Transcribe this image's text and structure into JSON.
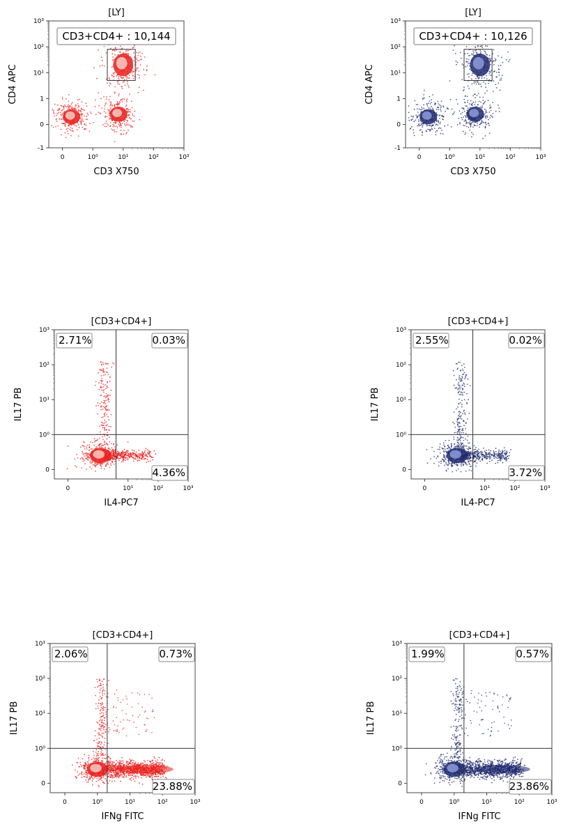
{
  "colors": {
    "red_series": "#e8201e",
    "blue_series": "#1f2a6e",
    "red_core": "#fbe0d8",
    "blue_core": "#9aa8e6"
  },
  "chart_data": [
    {
      "type": "scatter",
      "title": "[LY]",
      "xlabel": "CD3 X750",
      "ylabel": "CD4 APC",
      "x_scale": "biexponential",
      "y_scale": "biexponential",
      "xlim": [
        -0.5,
        1000
      ],
      "ylim": [
        -1,
        1000
      ],
      "xticks": [
        "0",
        "10⁰",
        "10¹",
        "10²",
        "10³"
      ],
      "yticks": [
        "-1",
        "0",
        "1",
        "10¹",
        "10²",
        "10³"
      ],
      "color": "red",
      "gate": {
        "type": "rectangle",
        "x": [
          3,
          25
        ],
        "y": [
          5,
          80
        ],
        "label": "CD3+CD4+ : 10,144"
      },
      "populations": [
        {
          "name": "",
          "x": 0.3,
          "y": 0.3
        },
        {
          "name": "",
          "x": 7,
          "y": 0.4
        },
        {
          "name": "",
          "x": 10,
          "y": 20
        }
      ]
    },
    {
      "type": "scatter",
      "title": "[LY]",
      "xlabel": "CD3 X750",
      "ylabel": "CD4 APC",
      "x_scale": "biexponential",
      "y_scale": "biexponential",
      "xlim": [
        -0.5,
        1000
      ],
      "ylim": [
        -1,
        1000
      ],
      "xticks": [
        "0",
        "10⁰",
        "10¹",
        "10²",
        "10³"
      ],
      "yticks": [
        "-1",
        "0",
        "1",
        "10¹",
        "10²",
        "10³"
      ],
      "color": "blue",
      "gate": {
        "type": "rectangle",
        "x": [
          3,
          25
        ],
        "y": [
          5,
          80
        ],
        "label": "CD3+CD4+ : 10,126"
      },
      "populations": [
        {
          "name": "",
          "x": 0.3,
          "y": 0.3
        },
        {
          "name": "",
          "x": 7,
          "y": 0.4
        },
        {
          "name": "",
          "x": 10,
          "y": 20
        }
      ]
    },
    {
      "type": "scatter",
      "title": "[CD3+CD4+]",
      "xlabel": "IL4-PC7",
      "ylabel": "IL17 PB",
      "x_scale": "biexponential",
      "y_scale": "biexponential",
      "xlim": [
        -0.5,
        1000
      ],
      "ylim": [
        -0.3,
        1000
      ],
      "xticks": [
        "0",
        "10¹",
        "10²",
        "10³"
      ],
      "yticks": [
        "0",
        "10⁰",
        "10¹",
        "10²",
        "10³"
      ],
      "color": "red",
      "quadrant_divider": {
        "x": 4,
        "y": 1
      },
      "quadrants": {
        "upper_left": "2.71%",
        "upper_right": "0.03%",
        "lower_right": "4.36%"
      }
    },
    {
      "type": "scatter",
      "title": "[CD3+CD4+]",
      "xlabel": "IL4-PC7",
      "ylabel": "IL17 PB",
      "x_scale": "biexponential",
      "y_scale": "biexponential",
      "xlim": [
        -0.5,
        1000
      ],
      "ylim": [
        -0.3,
        1000
      ],
      "xticks": [
        "0",
        "10¹",
        "10²",
        "10³"
      ],
      "yticks": [
        "0",
        "10⁰",
        "10¹",
        "10²",
        "10³"
      ],
      "color": "blue",
      "quadrant_divider": {
        "x": 4,
        "y": 1
      },
      "quadrants": {
        "upper_left": "2.55%",
        "upper_right": "0.02%",
        "lower_right": "3.72%"
      }
    },
    {
      "type": "scatter",
      "title": "[CD3+CD4+]",
      "xlabel": "IFNg FITC",
      "ylabel": "IL17 PB",
      "x_scale": "biexponential",
      "y_scale": "biexponential",
      "xlim": [
        -0.5,
        1000
      ],
      "ylim": [
        -0.3,
        1000
      ],
      "xticks": [
        "0",
        "10⁰",
        "10¹",
        "10²",
        "10³"
      ],
      "yticks": [
        "0",
        "10⁰",
        "10¹",
        "10²",
        "10³"
      ],
      "color": "red",
      "quadrant_divider": {
        "x": 2,
        "y": 1
      },
      "quadrants": {
        "upper_left": "2.06%",
        "upper_right": "0.73%",
        "lower_right": "23.88%"
      }
    },
    {
      "type": "scatter",
      "title": "[CD3+CD4+]",
      "xlabel": "IFNg FITC",
      "ylabel": "IL17 PB",
      "x_scale": "biexponential",
      "y_scale": "biexponential",
      "xlim": [
        -0.5,
        1000
      ],
      "ylim": [
        -0.3,
        1000
      ],
      "xticks": [
        "0",
        "10⁰",
        "10¹",
        "10²",
        "10³"
      ],
      "yticks": [
        "0",
        "10⁰",
        "10¹",
        "10²",
        "10³"
      ],
      "color": "blue",
      "quadrant_divider": {
        "x": 2,
        "y": 1
      },
      "quadrants": {
        "upper_left": "1.99%",
        "upper_right": "0.57%",
        "lower_right": "23.86%"
      }
    }
  ]
}
